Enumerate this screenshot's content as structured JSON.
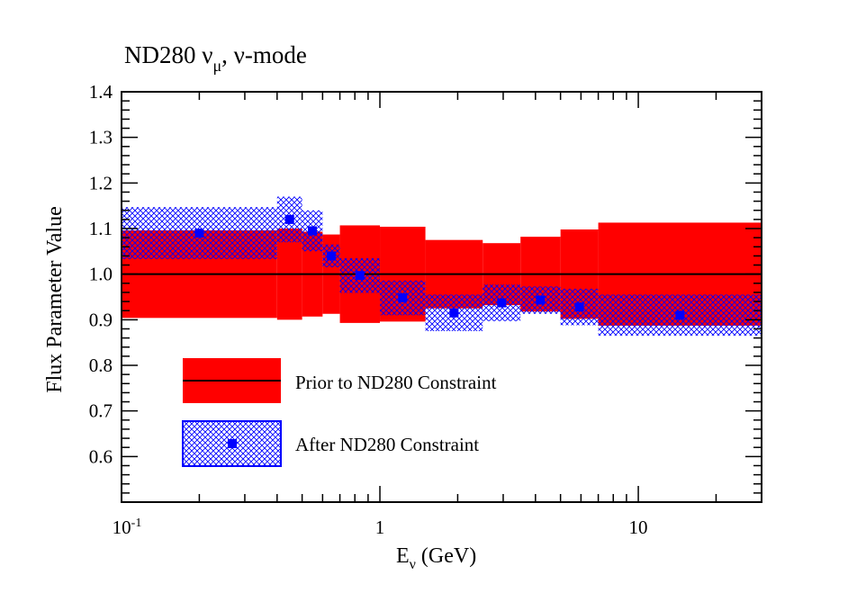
{
  "chart_data": {
    "type": "scatter",
    "title": "ND280 ν",
    "title_sub": "μ",
    "title_suffix": ", ν-mode",
    "xlabel": "E",
    "xlabel_sub": "ν",
    "xlabel_suffix": " (GeV)",
    "ylabel": "Flux Parameter Value",
    "x_scale": "log",
    "xlim": [
      0.1,
      30
    ],
    "ylim": [
      0.5,
      1.4
    ],
    "x_ticks": [
      {
        "value": 0.1,
        "label": "10",
        "sup": "-1"
      },
      {
        "value": 1,
        "label": "1",
        "sup": ""
      },
      {
        "value": 10,
        "label": "10",
        "sup": ""
      }
    ],
    "y_ticks": [
      {
        "value": 0.6,
        "label": "0.6"
      },
      {
        "value": 0.7,
        "label": "0.7"
      },
      {
        "value": 0.8,
        "label": "0.8"
      },
      {
        "value": 0.9,
        "label": "0.9"
      },
      {
        "value": 1.0,
        "label": "1.0"
      },
      {
        "value": 1.1,
        "label": "1.1"
      },
      {
        "value": 1.2,
        "label": "1.2"
      },
      {
        "value": 1.3,
        "label": "1.3"
      },
      {
        "value": 1.4,
        "label": "1.4"
      }
    ],
    "nominal": 1.0,
    "bins": [
      {
        "lo": 0.1,
        "hi": 0.4,
        "prior_err": 0.096,
        "post": 1.09,
        "post_err": 0.057
      },
      {
        "lo": 0.4,
        "hi": 0.5,
        "prior_err": 0.1,
        "post": 1.12,
        "post_err": 0.05
      },
      {
        "lo": 0.5,
        "hi": 0.6,
        "prior_err": 0.093,
        "post": 1.095,
        "post_err": 0.045
      },
      {
        "lo": 0.6,
        "hi": 0.7,
        "prior_err": 0.087,
        "post": 1.04,
        "post_err": 0.025
      },
      {
        "lo": 0.7,
        "hi": 1.0,
        "prior_err": 0.107,
        "post": 0.997,
        "post_err": 0.038
      },
      {
        "lo": 1.0,
        "hi": 1.5,
        "prior_err": 0.104,
        "post": 0.948,
        "post_err": 0.038
      },
      {
        "lo": 1.5,
        "hi": 2.5,
        "prior_err": 0.075,
        "post": 0.915,
        "post_err": 0.04
      },
      {
        "lo": 2.5,
        "hi": 3.5,
        "prior_err": 0.068,
        "post": 0.937,
        "post_err": 0.04
      },
      {
        "lo": 3.5,
        "hi": 5.0,
        "prior_err": 0.082,
        "post": 0.943,
        "post_err": 0.03
      },
      {
        "lo": 5.0,
        "hi": 7.0,
        "prior_err": 0.098,
        "post": 0.928,
        "post_err": 0.04
      },
      {
        "lo": 7.0,
        "hi": 30.0,
        "prior_err": 0.113,
        "post": 0.91,
        "post_err": 0.045
      }
    ],
    "legend": {
      "placement": "lower-left",
      "entries": [
        {
          "label": "Prior to ND280 Constraint",
          "style": "band-with-line"
        },
        {
          "label": "After ND280 Constraint",
          "style": "hatched-with-marker"
        }
      ]
    },
    "colors": {
      "prior": "#ff0000",
      "post_hatch": "#0000ff",
      "marker": "#0000ff",
      "axis": "#000000"
    }
  }
}
